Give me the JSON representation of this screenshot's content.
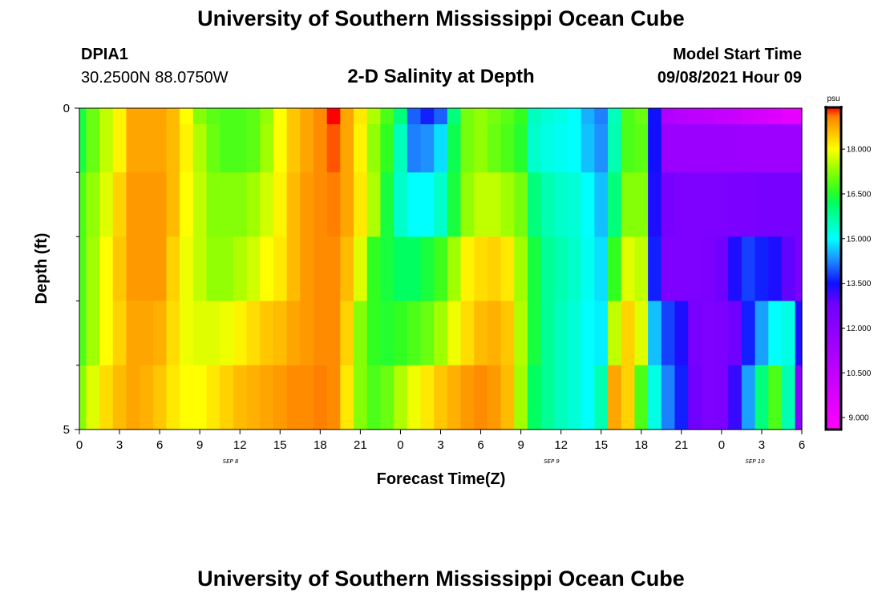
{
  "header": {
    "title": "University of Southern Mississippi Ocean Cube",
    "station_id": "DPIA1",
    "coordinates": "30.2500N  88.0750W",
    "plot_title": "2-D Salinity at Depth",
    "model_start_label": "Model Start Time",
    "model_start_value": "09/08/2021 Hour 09"
  },
  "footer": {
    "title": "University of Southern Mississippi Ocean Cube"
  },
  "chart_data": {
    "type": "heatmap",
    "title": "2-D Salinity at Depth",
    "xlabel": "Forecast Time(Z)",
    "ylabel": "Depth (ft)",
    "x_tick_labels": [
      "0",
      "3",
      "6",
      "9",
      "12",
      "15",
      "18",
      "21",
      "0",
      "3",
      "6",
      "9",
      "12",
      "15",
      "18",
      "21",
      "0",
      "3",
      "6"
    ],
    "x_date_labels": [
      {
        "label": "SEP 8",
        "hour_index": 11.3
      },
      {
        "label": "SEP 9",
        "hour_index": 35.3
      },
      {
        "label": "SEP 10",
        "hour_index": 50.5
      }
    ],
    "hours_total": 54,
    "y_range": [
      0,
      5
    ],
    "y_tick_labels": [
      "0",
      "5"
    ],
    "y_minor_ticks": [
      1,
      2,
      3,
      4
    ],
    "depth_levels": [
      0,
      0.5,
      1.5,
      2.5,
      3.5,
      4.5
    ],
    "colorbar": {
      "unit": "psu",
      "min": 8.6,
      "max": 19.4,
      "tick_labels": [
        "9.000",
        "10.500",
        "12.000",
        "13.500",
        "15.000",
        "16.500",
        "18.000"
      ],
      "tick_values": [
        9.0,
        10.5,
        12.0,
        13.5,
        15.0,
        16.5,
        18.0
      ],
      "color_stops": [
        {
          "v": 8.6,
          "c": "#ff00ff"
        },
        {
          "v": 11.0,
          "c": "#b000ff"
        },
        {
          "v": 12.8,
          "c": "#7000ff"
        },
        {
          "v": 13.5,
          "c": "#1010ff"
        },
        {
          "v": 14.3,
          "c": "#1e90ff"
        },
        {
          "v": 15.0,
          "c": "#00ffff"
        },
        {
          "v": 16.2,
          "c": "#00ff60"
        },
        {
          "v": 16.6,
          "c": "#30ff20"
        },
        {
          "v": 17.4,
          "c": "#a0ff00"
        },
        {
          "v": 18.0,
          "c": "#ffff00"
        },
        {
          "v": 18.8,
          "c": "#ffa500"
        },
        {
          "v": 19.1,
          "c": "#ff8000"
        },
        {
          "v": 19.4,
          "c": "#ff0000"
        }
      ]
    },
    "salinity_psu": [
      [
        16.4,
        17.0,
        17.6,
        18.1,
        18.8,
        18.8,
        18.8,
        18.6,
        18.0,
        17.2,
        16.9,
        16.8,
        16.8,
        16.9,
        17.3,
        18.0,
        18.5,
        18.8,
        19.0,
        19.4,
        18.8,
        18.2,
        17.5,
        16.8,
        16.0,
        14.0,
        13.6,
        14.0,
        16.0,
        17.1,
        17.3,
        17.1,
        16.9,
        16.6,
        15.5,
        15.3,
        15.2,
        15.0,
        14.5,
        14.2,
        15.5,
        16.8,
        17.0,
        13.5,
        11.0,
        10.8,
        10.6,
        10.5,
        10.4,
        10.2,
        10.0,
        9.8,
        9.6,
        9.4,
        9.3
      ],
      [
        16.4,
        17.0,
        17.6,
        18.1,
        18.8,
        18.8,
        18.8,
        18.6,
        18.1,
        17.5,
        17.0,
        16.8,
        16.8,
        16.9,
        17.4,
        18.0,
        18.5,
        18.8,
        19.0,
        19.2,
        18.8,
        18.1,
        17.3,
        16.6,
        15.5,
        14.2,
        14.3,
        14.8,
        16.3,
        17.1,
        17.3,
        17.0,
        16.8,
        16.5,
        15.4,
        15.2,
        15.1,
        15.0,
        14.6,
        14.3,
        15.6,
        16.8,
        16.9,
        13.5,
        11.6,
        11.6,
        11.6,
        11.6,
        11.6,
        11.6,
        11.5,
        11.5,
        11.5,
        11.5,
        11.5
      ],
      [
        16.8,
        17.3,
        17.8,
        18.4,
        18.9,
        18.9,
        18.9,
        18.6,
        18.0,
        17.6,
        17.2,
        17.2,
        17.2,
        17.4,
        17.7,
        18.1,
        18.6,
        18.9,
        19.0,
        19.1,
        18.8,
        18.2,
        17.5,
        16.4,
        15.4,
        15.0,
        15.0,
        15.4,
        16.4,
        17.3,
        17.6,
        17.6,
        17.4,
        17.1,
        16.0,
        15.6,
        15.4,
        15.3,
        15.0,
        14.6,
        16.0,
        17.2,
        17.2,
        13.4,
        12.6,
        12.4,
        12.4,
        12.4,
        12.4,
        12.5,
        12.5,
        12.6,
        12.6,
        12.6,
        12.6
      ],
      [
        16.8,
        17.4,
        18.0,
        18.5,
        18.9,
        18.9,
        18.9,
        18.4,
        17.9,
        17.6,
        17.3,
        17.3,
        17.5,
        17.7,
        18.0,
        18.2,
        18.6,
        18.9,
        19.0,
        19.0,
        18.6,
        17.8,
        16.6,
        16.4,
        16.2,
        16.2,
        16.4,
        16.7,
        17.4,
        18.1,
        18.3,
        18.4,
        18.2,
        17.4,
        16.4,
        15.8,
        15.6,
        15.4,
        15.1,
        14.8,
        16.6,
        17.8,
        17.6,
        13.6,
        12.4,
        12.4,
        12.4,
        12.5,
        12.8,
        13.4,
        13.8,
        13.6,
        13.4,
        12.9,
        12.5
      ],
      [
        16.8,
        17.4,
        18.0,
        18.4,
        18.8,
        18.8,
        18.7,
        18.3,
        17.9,
        17.8,
        17.8,
        17.9,
        18.1,
        18.3,
        18.5,
        18.6,
        18.8,
        18.9,
        19.0,
        19.0,
        18.4,
        17.2,
        16.6,
        16.5,
        16.6,
        16.8,
        17.0,
        17.4,
        17.9,
        18.3,
        18.6,
        18.7,
        18.5,
        17.5,
        16.4,
        15.8,
        15.5,
        15.3,
        15.0,
        14.9,
        17.6,
        18.4,
        17.8,
        14.6,
        13.8,
        13.4,
        12.6,
        12.4,
        12.5,
        12.8,
        13.6,
        14.4,
        15.0,
        15.2,
        13.4
      ],
      [
        17.2,
        17.8,
        18.3,
        18.6,
        18.8,
        18.7,
        18.5,
        18.2,
        18.0,
        18.0,
        18.2,
        18.4,
        18.6,
        18.7,
        18.8,
        18.9,
        19.0,
        19.0,
        19.1,
        19.0,
        18.2,
        17.2,
        16.8,
        17.0,
        17.5,
        17.9,
        18.2,
        18.5,
        18.7,
        18.9,
        19.0,
        18.9,
        18.6,
        17.4,
        16.2,
        15.8,
        15.5,
        15.3,
        15.0,
        15.6,
        18.8,
        18.4,
        16.8,
        15.2,
        14.2,
        13.6,
        12.8,
        12.4,
        12.5,
        13.2,
        14.4,
        16.0,
        16.8,
        15.6,
        12.0
      ]
    ]
  }
}
